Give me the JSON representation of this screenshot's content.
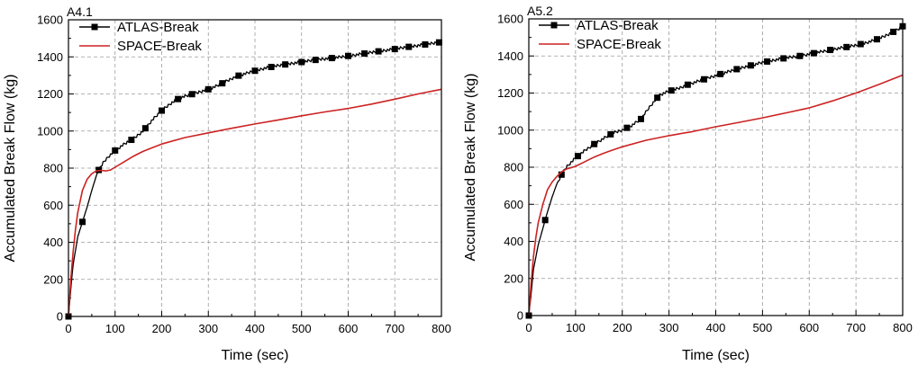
{
  "chart_data": [
    {
      "type": "line",
      "title": "A4.1",
      "xlabel": "Time (sec)",
      "ylabel": "Accumulated Break Flow (kg)",
      "xlim": [
        0,
        800
      ],
      "ylim": [
        0,
        1600
      ],
      "xticks": [
        0,
        100,
        200,
        300,
        400,
        500,
        600,
        700,
        800
      ],
      "yticks": [
        0,
        200,
        400,
        600,
        800,
        1000,
        1200,
        1400,
        1600
      ],
      "grid": true,
      "legend_position": "top-left",
      "series": [
        {
          "name": "ATLAS-Break",
          "color": "#000000",
          "marker": "square",
          "x": [
            0,
            5,
            10,
            20,
            30,
            40,
            50,
            60,
            65,
            75,
            85,
            100,
            120,
            140,
            160,
            180,
            200,
            220,
            240,
            260,
            280,
            300,
            320,
            340,
            360,
            380,
            400,
            420,
            440,
            460,
            480,
            500,
            520,
            540,
            560,
            580,
            600,
            620,
            640,
            660,
            680,
            700,
            720,
            740,
            760,
            780,
            800
          ],
          "y": [
            0,
            150,
            280,
            430,
            510,
            590,
            680,
            760,
            790,
            830,
            860,
            895,
            930,
            960,
            1000,
            1060,
            1110,
            1150,
            1180,
            1195,
            1210,
            1225,
            1245,
            1270,
            1295,
            1310,
            1325,
            1338,
            1348,
            1357,
            1365,
            1372,
            1380,
            1387,
            1392,
            1398,
            1405,
            1412,
            1420,
            1428,
            1435,
            1442,
            1450,
            1458,
            1465,
            1472,
            1480
          ],
          "markers": [
            0,
            30,
            65,
            100,
            135,
            165,
            200,
            235,
            265,
            300,
            330,
            365,
            400,
            435,
            465,
            500,
            530,
            565,
            600,
            635,
            665,
            700,
            730,
            765,
            795
          ]
        },
        {
          "name": "SPACE-Break",
          "color": "#cc2222",
          "x": [
            0,
            5,
            10,
            15,
            20,
            30,
            40,
            50,
            60,
            70,
            80,
            90,
            100,
            120,
            140,
            160,
            180,
            200,
            250,
            300,
            350,
            400,
            450,
            500,
            550,
            600,
            650,
            700,
            750,
            800
          ],
          "y": [
            0,
            200,
            350,
            470,
            560,
            680,
            740,
            770,
            785,
            788,
            785,
            790,
            805,
            835,
            865,
            890,
            910,
            930,
            965,
            990,
            1015,
            1038,
            1060,
            1082,
            1103,
            1122,
            1145,
            1172,
            1200,
            1225
          ]
        }
      ]
    },
    {
      "type": "line",
      "title": "A5.2",
      "xlabel": "Time (sec)",
      "ylabel": "Accumulated Break Flow (kg)",
      "xlim": [
        0,
        800
      ],
      "ylim": [
        0,
        1600
      ],
      "xticks": [
        0,
        100,
        200,
        300,
        400,
        500,
        600,
        700,
        800
      ],
      "yticks": [
        0,
        200,
        400,
        600,
        800,
        1000,
        1200,
        1400,
        1600
      ],
      "grid": true,
      "legend_position": "top-right",
      "series": [
        {
          "name": "ATLAS-Break",
          "color": "#000000",
          "marker": "square",
          "x": [
            0,
            5,
            10,
            20,
            30,
            40,
            50,
            60,
            70,
            80,
            100,
            120,
            140,
            160,
            180,
            200,
            220,
            240,
            260,
            280,
            300,
            320,
            340,
            360,
            380,
            400,
            420,
            440,
            460,
            480,
            500,
            520,
            540,
            560,
            580,
            600,
            620,
            640,
            660,
            680,
            700,
            720,
            740,
            760,
            780,
            800
          ],
          "y": [
            0,
            120,
            250,
            380,
            470,
            560,
            640,
            710,
            760,
            800,
            850,
            890,
            925,
            955,
            985,
            1000,
            1025,
            1060,
            1130,
            1190,
            1210,
            1225,
            1245,
            1262,
            1278,
            1295,
            1310,
            1325,
            1340,
            1352,
            1365,
            1375,
            1385,
            1393,
            1400,
            1410,
            1420,
            1430,
            1440,
            1448,
            1458,
            1470,
            1485,
            1505,
            1530,
            1560
          ],
          "markers": [
            0,
            35,
            70,
            105,
            140,
            175,
            210,
            240,
            275,
            305,
            340,
            375,
            410,
            445,
            475,
            510,
            545,
            580,
            610,
            645,
            680,
            710,
            745,
            780,
            800
          ]
        },
        {
          "name": "SPACE-Break",
          "color": "#cc2222",
          "x": [
            0,
            5,
            10,
            15,
            20,
            30,
            40,
            50,
            60,
            70,
            80,
            100,
            120,
            140,
            160,
            180,
            200,
            250,
            300,
            350,
            400,
            450,
            500,
            550,
            600,
            650,
            700,
            750,
            800
          ],
          "y": [
            0,
            180,
            320,
            420,
            500,
            600,
            680,
            720,
            750,
            775,
            790,
            805,
            830,
            855,
            875,
            893,
            910,
            945,
            970,
            992,
            1018,
            1042,
            1066,
            1093,
            1120,
            1158,
            1200,
            1247,
            1297
          ]
        }
      ]
    }
  ]
}
